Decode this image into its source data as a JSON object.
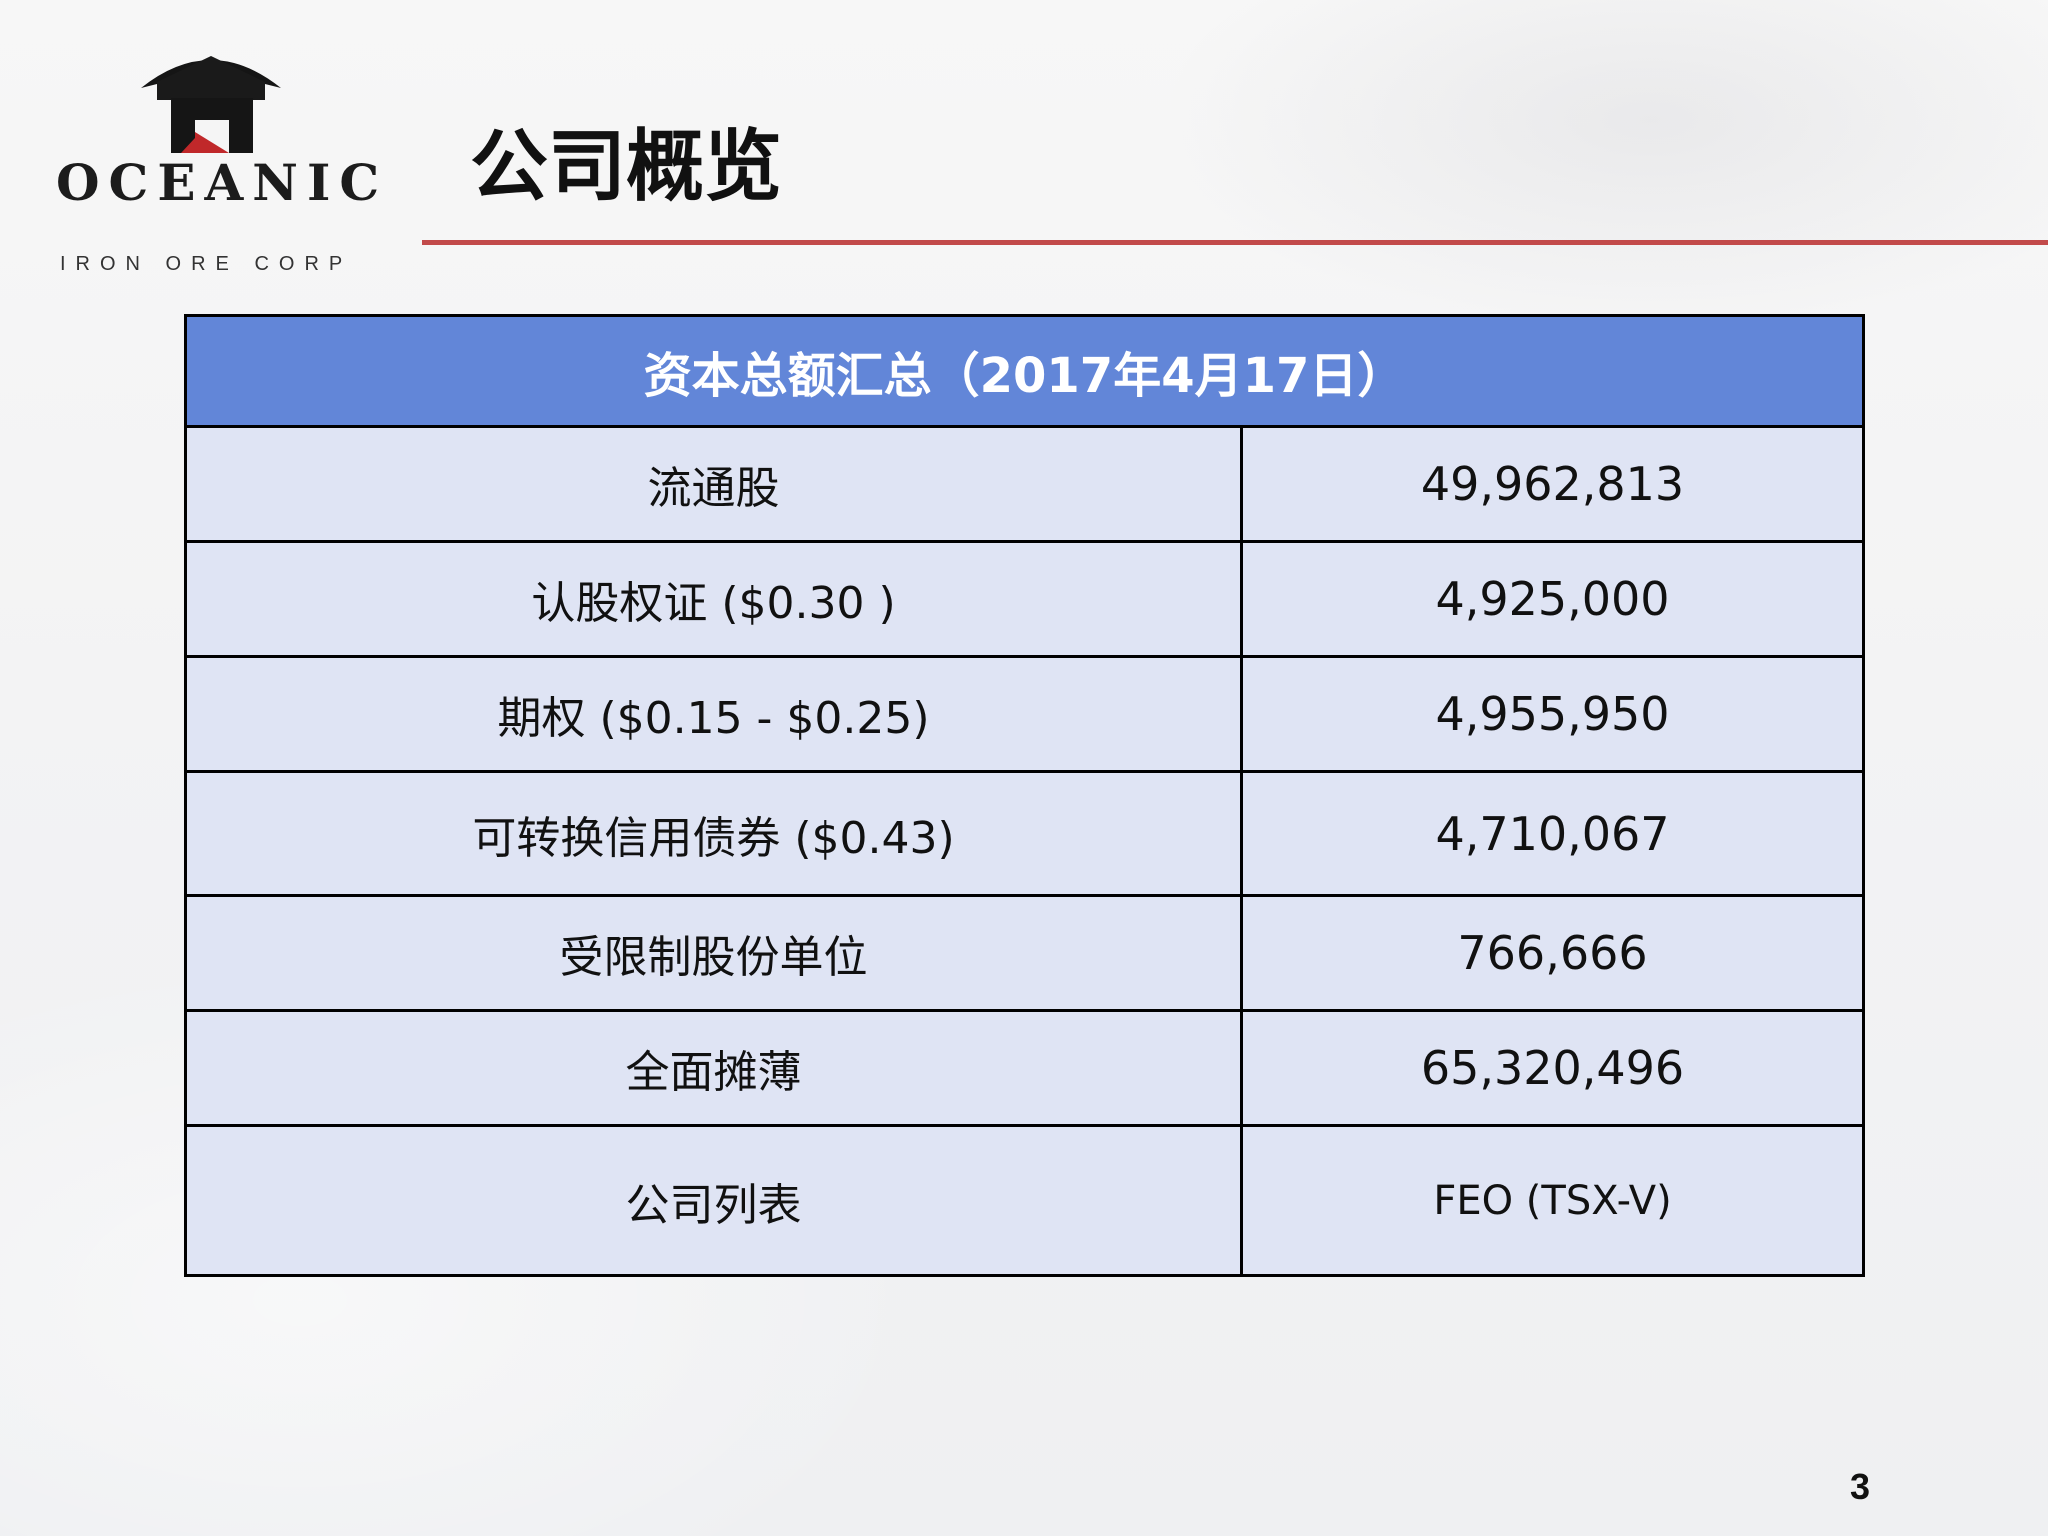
{
  "logo": {
    "name": "OCEANIC",
    "sub": "IRON ORE CORP"
  },
  "title": "公司概览",
  "table": {
    "header": "资本总额汇总（2017年4月17日）",
    "rows": [
      {
        "label": "流通股",
        "value": "49,962,813"
      },
      {
        "label": "认股权证 ($0.30 )",
        "value": "4,925,000"
      },
      {
        "label": "期权 ($0.15 - $0.25)",
        "value": "4,955,950"
      },
      {
        "label": "可转换信用债券 ($0.43)",
        "value": "4,710,067"
      },
      {
        "label": "受限制股份单位",
        "value": "766,666"
      },
      {
        "label": "全面摊薄",
        "value": "65,320,496"
      },
      {
        "label": "公司列表",
        "value": "FEO (TSX-V)"
      }
    ]
  },
  "page_number": "3",
  "colors": {
    "header_bg": "#6286d8",
    "cell_bg": "#dfe4f4",
    "rule": "#c24a4a",
    "logo_red": "#c0282a"
  }
}
